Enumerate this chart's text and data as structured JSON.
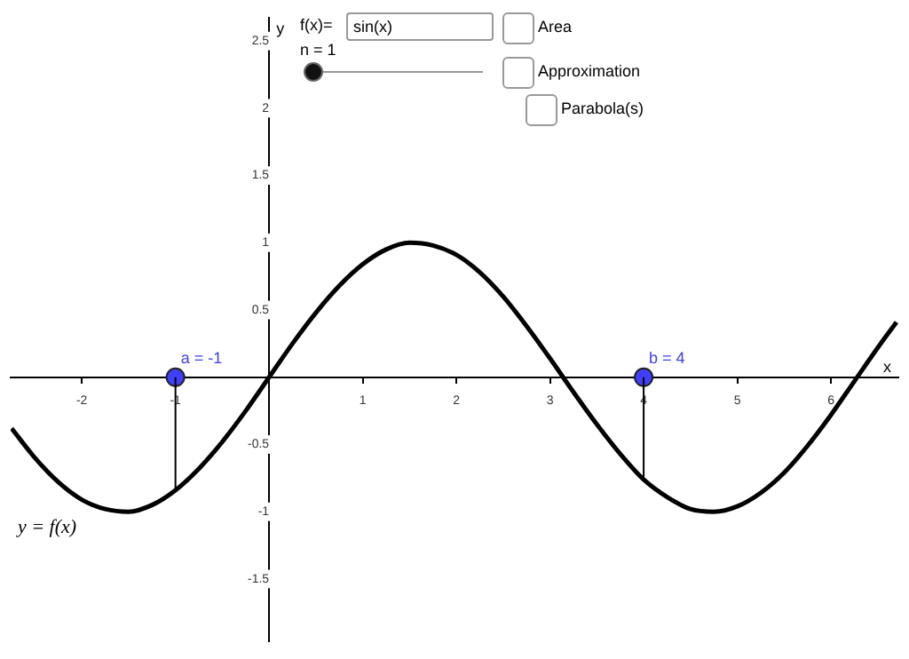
{
  "chart_data": {
    "type": "line",
    "xlabel": "x",
    "ylabel": "y",
    "xlim": [
      -2.76,
      6.72
    ],
    "ylim": [
      -1.96,
      2.67
    ],
    "xticks": [
      -2,
      -1,
      1,
      2,
      3,
      4,
      5,
      6
    ],
    "yticks": [
      -1.5,
      -1,
      -0.5,
      0.5,
      1,
      1.5,
      2,
      2.5
    ],
    "grid": false,
    "legend": false,
    "series": [
      {
        "name": "y = f(x)",
        "color": "#000000",
        "marker": "none",
        "x": [
          -2.75,
          -2.5,
          -2.25,
          -2,
          -1.75,
          -1.5,
          -1.25,
          -1,
          -0.75,
          -0.5,
          -0.25,
          0,
          0.25,
          0.5,
          0.75,
          1,
          1.25,
          1.5,
          1.75,
          2,
          2.25,
          2.5,
          2.75,
          3,
          3.25,
          3.5,
          3.75,
          4,
          4.25,
          4.5,
          4.75,
          5,
          5.25,
          5.5,
          5.75,
          6,
          6.25,
          6.5,
          6.7
        ],
        "values": [
          -0.38,
          -0.6,
          -0.78,
          -0.91,
          -0.98,
          -1,
          -0.95,
          -0.84,
          -0.68,
          -0.48,
          -0.25,
          0,
          0.25,
          0.48,
          0.68,
          0.84,
          0.95,
          1,
          0.98,
          0.91,
          0.78,
          0.6,
          0.38,
          0.14,
          -0.11,
          -0.35,
          -0.57,
          -0.76,
          -0.89,
          -0.98,
          -1,
          -0.96,
          -0.86,
          -0.71,
          -0.51,
          -0.28,
          -0.03,
          0.22,
          0.41
        ]
      },
      {
        "type": "line",
        "color": "#000000",
        "marker": "none",
        "x": [
          -1,
          -1
        ],
        "values": [
          0,
          -0.84
        ]
      },
      {
        "type": "line",
        "color": "#000000",
        "marker": "none",
        "x": [
          4,
          4
        ],
        "values": [
          0,
          -0.76
        ]
      },
      {
        "type": "scatter",
        "color": "#3f3fff",
        "marker": "circle",
        "x": [
          -1,
          4
        ],
        "values": [
          0,
          0
        ]
      }
    ],
    "annotations": [
      {
        "text": "a = -1",
        "x": -1,
        "y": 0
      },
      {
        "text": "b = 4",
        "x": 4,
        "y": 0
      },
      "f(x)=",
      "sin(x)",
      "n = 1",
      "Area",
      "Approximation",
      "Parabola(s)"
    ]
  }
}
